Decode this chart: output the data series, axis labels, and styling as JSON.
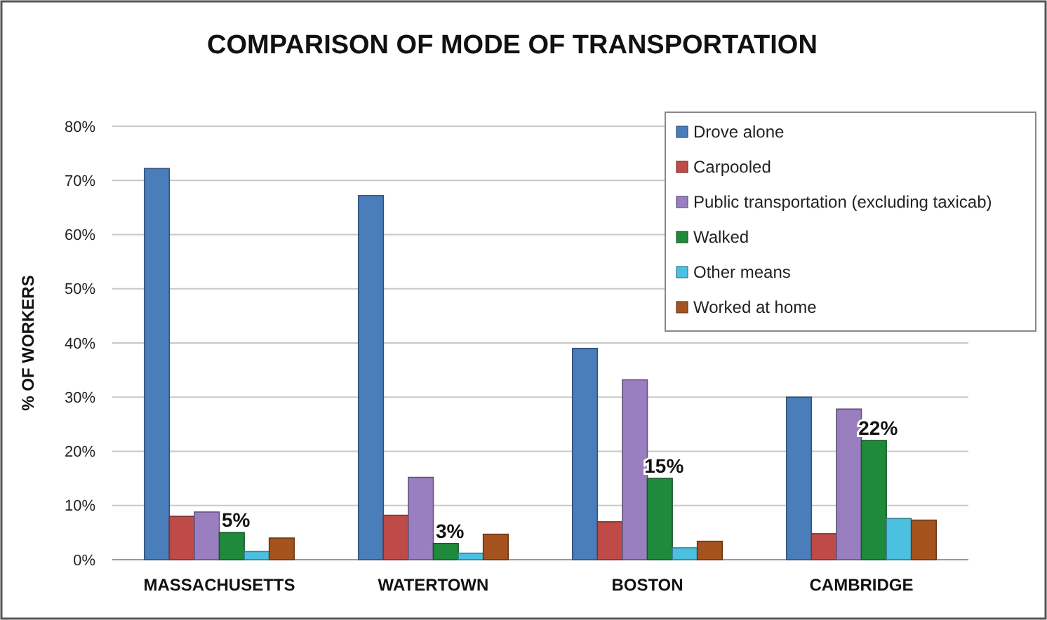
{
  "chart_data": {
    "type": "bar",
    "title": "COMPARISON OF MODE OF TRANSPORTATION",
    "ylabel": "% OF WORKERS",
    "categories": [
      "MASSACHUSETTS",
      "WATERTOWN",
      "BOSTON",
      "CAMBRIDGE"
    ],
    "series": [
      {
        "name": "Drove alone",
        "color": "#4a7ebb",
        "values": [
          72.2,
          67.2,
          39,
          30
        ]
      },
      {
        "name": "Carpooled",
        "color": "#be4b48",
        "values": [
          8,
          8.2,
          7,
          4.8
        ]
      },
      {
        "name": "Public transportation (excluding taxicab)",
        "color": "#9a7fc0",
        "values": [
          8.8,
          15.2,
          33.2,
          27.8
        ]
      },
      {
        "name": "Walked",
        "color": "#1f8a3c",
        "values": [
          5,
          3,
          15,
          22
        ],
        "value_labels": [
          "5%",
          "3%",
          "15%",
          "22%"
        ]
      },
      {
        "name": "Other means",
        "color": "#4bc0e0",
        "values": [
          1.5,
          1.2,
          2.2,
          7.6
        ]
      },
      {
        "name": "Worked at home",
        "color": "#a5531e",
        "values": [
          4,
          4.7,
          3.4,
          7.3
        ]
      }
    ],
    "ylim": [
      0,
      80
    ],
    "yticks": [
      {
        "value": 0,
        "label": "0%"
      },
      {
        "value": 10,
        "label": "10%"
      },
      {
        "value": 20,
        "label": "20%"
      },
      {
        "value": 30,
        "label": "30%"
      },
      {
        "value": 40,
        "label": "40%"
      },
      {
        "value": 50,
        "label": "50%"
      },
      {
        "value": 60,
        "label": "60%"
      },
      {
        "value": 70,
        "label": "70%"
      },
      {
        "value": 80,
        "label": "80%"
      }
    ],
    "grid": "y",
    "legend": "top right"
  }
}
